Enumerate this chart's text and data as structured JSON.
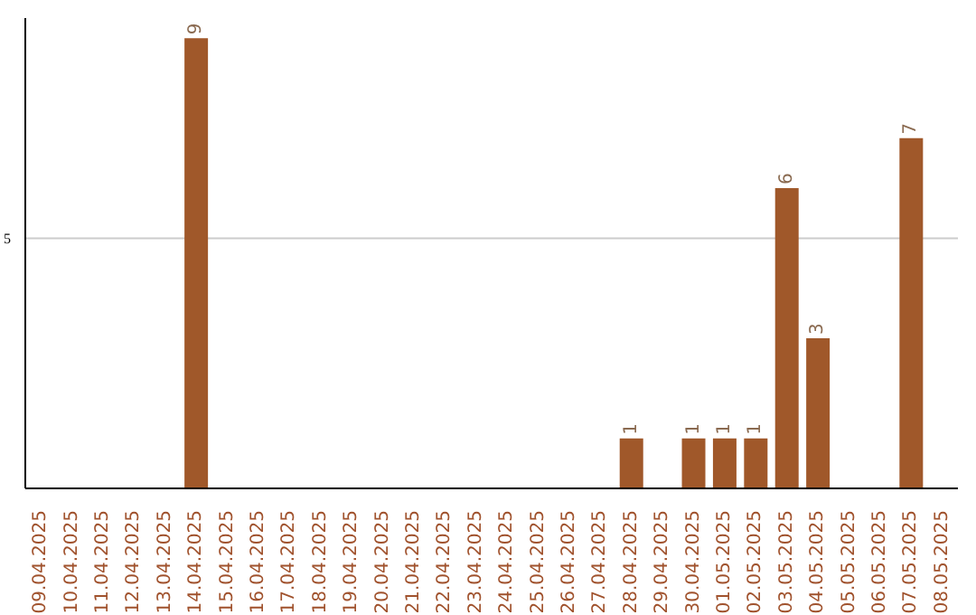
{
  "chart_data": {
    "type": "bar",
    "categories": [
      "09.04.2025",
      "10.04.2025",
      "11.04.2025",
      "12.04.2025",
      "13.04.2025",
      "14.04.2025",
      "15.04.2025",
      "16.04.2025",
      "17.04.2025",
      "18.04.2025",
      "19.04.2025",
      "20.04.2025",
      "21.04.2025",
      "22.04.2025",
      "23.04.2025",
      "24.04.2025",
      "25.04.2025",
      "26.04.2025",
      "27.04.2025",
      "28.04.2025",
      "29.04.2025",
      "30.04.2025",
      "01.05.2025",
      "02.05.2025",
      "03.05.2025",
      "04.05.2025",
      "05.05.2025",
      "06.05.2025",
      "07.05.2025",
      "08.05.2025"
    ],
    "values": [
      null,
      null,
      null,
      null,
      null,
      9,
      null,
      null,
      null,
      null,
      null,
      null,
      null,
      null,
      null,
      null,
      null,
      null,
      null,
      1,
      null,
      1,
      1,
      1,
      6,
      3,
      null,
      null,
      7,
      null
    ],
    "color": "#a0582a",
    "ylim": [
      0,
      9.4
    ],
    "yticks": [
      5
    ],
    "grid": "y",
    "data_labels": true
  }
}
